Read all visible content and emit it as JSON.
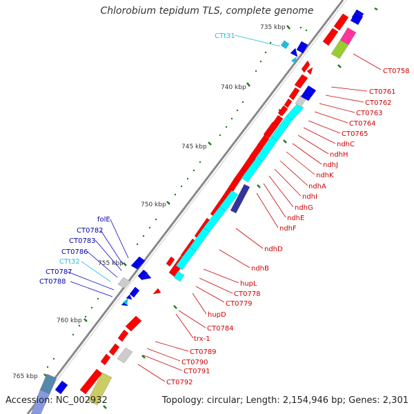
{
  "title": "Chlorobium tepidum TLS, complete genome",
  "footer": {
    "accession": "Accession: NC_002932",
    "summary": "Topology: circular; Length: 2,154,946 bp; Genes: 2,301"
  },
  "colors": {
    "backbone": "#888888",
    "cds_forward": "#ff0000",
    "cds_reverse": "#0000ee",
    "rna": "#22bbdd",
    "cog_cyan": "#00ffff",
    "cog_gray": "#cccccc",
    "cog_magenta": "#ff3399",
    "cog_olive": "#99cc33",
    "cog_khaki": "#cccc66",
    "cog_steel": "#5588aa",
    "cog_indigo": "#333399",
    "tick": "#1a7a1a",
    "label_forward": "#cc0000",
    "label_reverse": "#0000aa",
    "label_rna": "#22bbdd"
  },
  "scale_labels": [
    "735 kbp",
    "740 kbp",
    "745 kbp",
    "750 kbp",
    "755 kbp",
    "760 kbp",
    "765 kbp"
  ],
  "genes_forward_labels": [
    "CT0758",
    "CT0761",
    "CT0762",
    "CT0763",
    "CT0764",
    "CT0765",
    "ndhC",
    "ndhH",
    "ndhJ",
    "ndhK",
    "ndhA",
    "ndhI",
    "ndhG",
    "ndhE",
    "ndhF",
    "ndhD",
    "ndhB",
    "hupL",
    "CT0778",
    "CT0779",
    "hupD",
    "CT0784",
    "trx-1",
    "CT0789",
    "CT0790",
    "CT0791",
    "CT0792"
  ],
  "genes_reverse_labels": [
    "CTt31",
    "folE",
    "CT0782",
    "CT0783",
    "CT0786",
    "CTt32",
    "CT0787",
    "CT0788"
  ]
}
